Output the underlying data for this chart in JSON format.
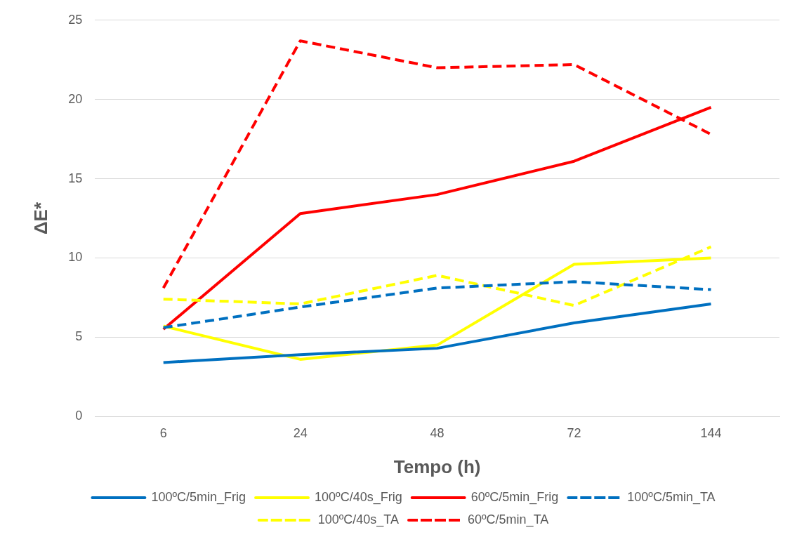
{
  "chart_data": {
    "type": "line",
    "xlabel": "Tempo (h)",
    "ylabel": "ΔE*",
    "categories": [
      "6",
      "24",
      "48",
      "72",
      "144"
    ],
    "ylim": [
      0,
      25
    ],
    "yticks": [
      0,
      5,
      10,
      15,
      20,
      25
    ],
    "grid": "y",
    "legend": "bottom",
    "marker": "none",
    "series": [
      {
        "name": "100ºC/5min_Frig",
        "color": "#0070c0",
        "line_style": "solid",
        "values": [
          3.4,
          3.9,
          4.3,
          5.9,
          7.1
        ]
      },
      {
        "name": "100ºC/40s_Frig",
        "color": "#ffff00",
        "line_style": "solid",
        "values": [
          5.7,
          3.6,
          4.5,
          9.6,
          10.0
        ]
      },
      {
        "name": "60ºC/5min_Frig",
        "color": "#ff0000",
        "line_style": "solid",
        "values": [
          5.5,
          12.8,
          14.0,
          16.1,
          19.5
        ]
      },
      {
        "name": "100ºC/5min_TA",
        "color": "#0070c0",
        "line_style": "dashed",
        "values": [
          5.6,
          6.9,
          8.1,
          8.5,
          8.0
        ]
      },
      {
        "name": "100ºC/40s_TA",
        "color": "#ffff00",
        "line_style": "dashed",
        "values": [
          7.4,
          7.1,
          8.9,
          7.0,
          10.7
        ]
      },
      {
        "name": "60ºC/5min_TA",
        "color": "#ff0000",
        "line_style": "dashed",
        "values": [
          8.1,
          23.7,
          22.0,
          22.2,
          17.8
        ]
      }
    ]
  }
}
